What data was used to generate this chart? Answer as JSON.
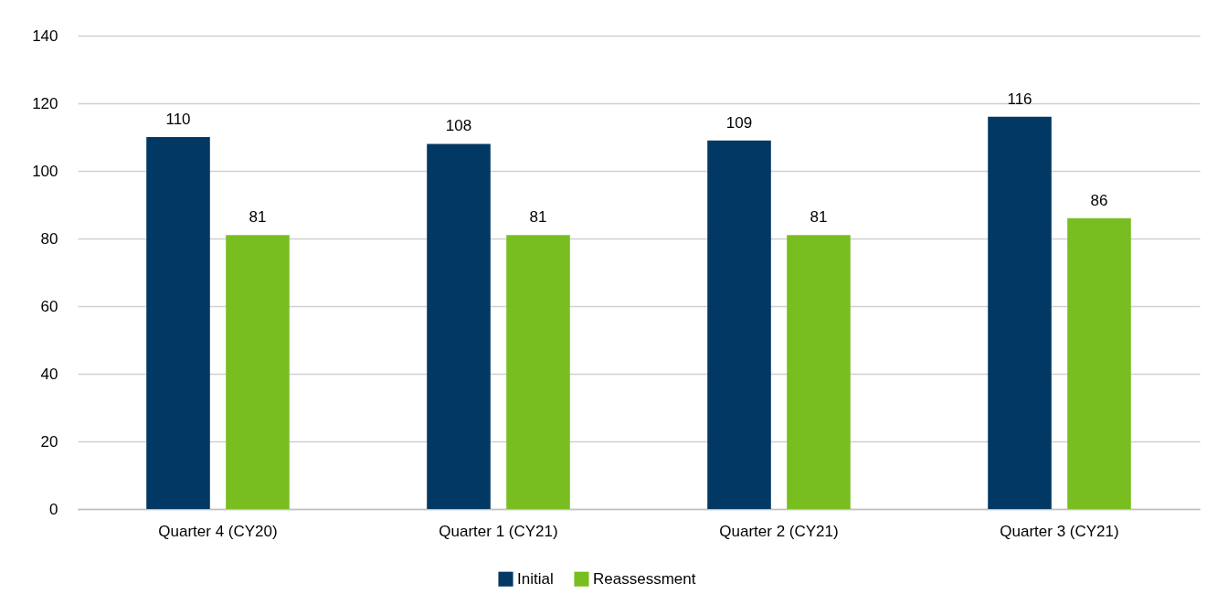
{
  "chart_data": {
    "type": "bar",
    "categories": [
      "Quarter 4 (CY20)",
      "Quarter 1 (CY21)",
      "Quarter 2 (CY21)",
      "Quarter 3 (CY21)"
    ],
    "series": [
      {
        "name": "Initial",
        "color": "#023864",
        "values": [
          110,
          108,
          109,
          116
        ]
      },
      {
        "name": "Reassessment",
        "color": "#78be20",
        "values": [
          81,
          81,
          81,
          86
        ]
      }
    ],
    "ylim": [
      0,
      140
    ],
    "yticks": [
      0,
      20,
      40,
      60,
      80,
      100,
      120,
      140
    ],
    "grid": "y",
    "data_labels": true,
    "legend": "bottom"
  }
}
